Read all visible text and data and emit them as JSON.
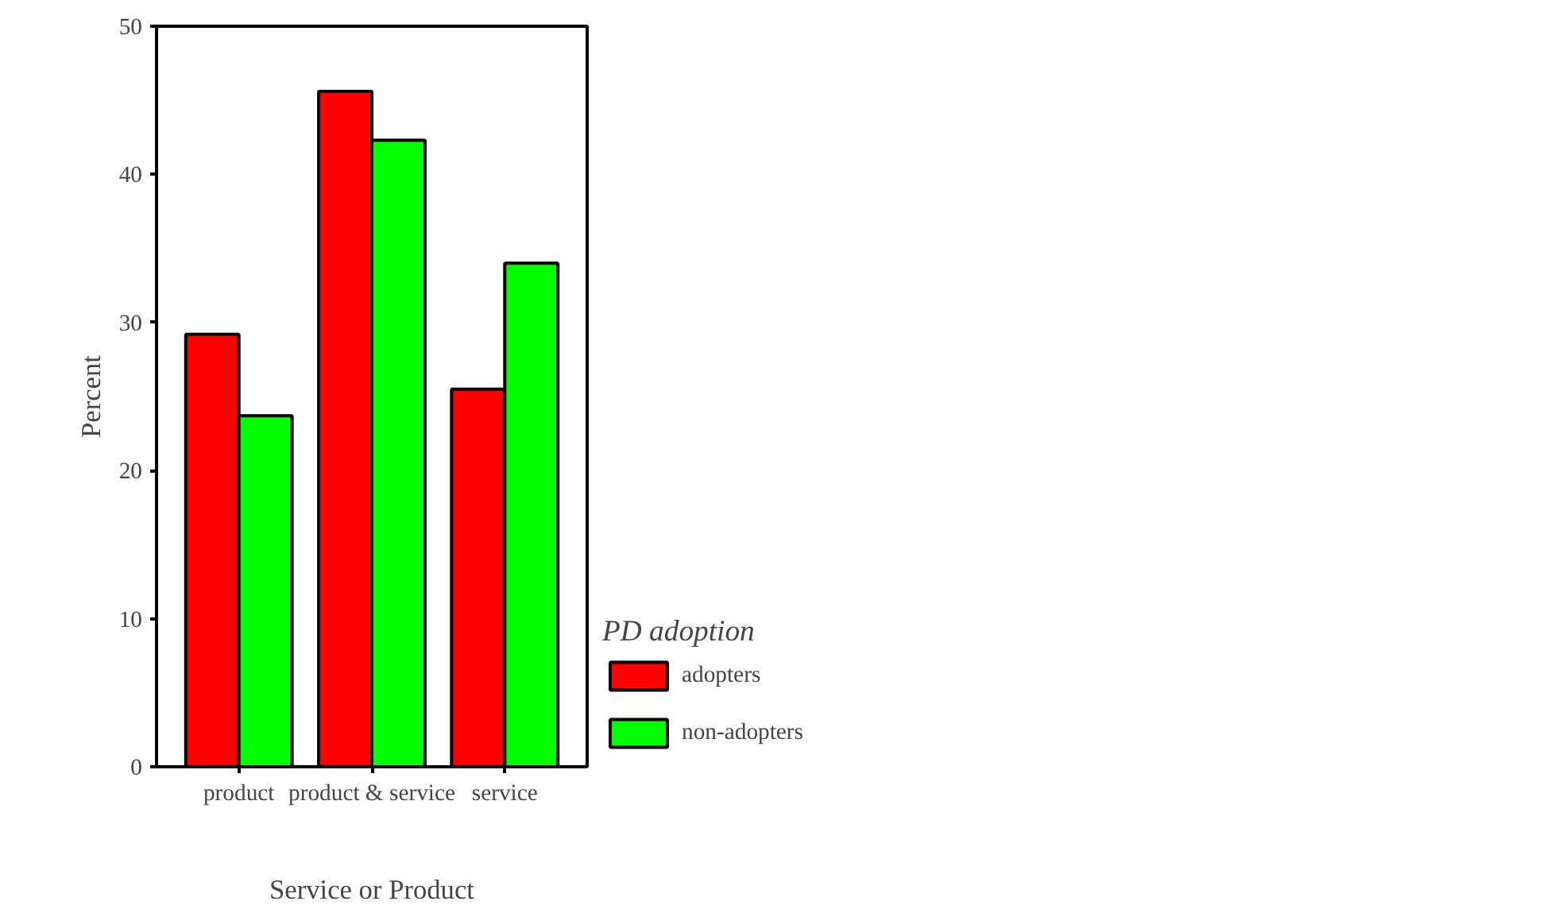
{
  "chart_data": {
    "type": "bar",
    "categories": [
      "product",
      "product & service",
      "service"
    ],
    "series": [
      {
        "name": "adopters",
        "color": "#ff0000",
        "values": [
          29.2,
          45.6,
          25.5
        ]
      },
      {
        "name": "non-adopters",
        "color": "#00ff00",
        "values": [
          23.7,
          42.3,
          34.0
        ]
      }
    ],
    "xlabel": "Service or Product",
    "ylabel": "Percent",
    "legend_title": "PD adoption",
    "legend": "right",
    "ylim": [
      0,
      50
    ],
    "yticks": [
      0,
      10,
      20,
      30,
      40,
      50
    ],
    "grid": false
  }
}
